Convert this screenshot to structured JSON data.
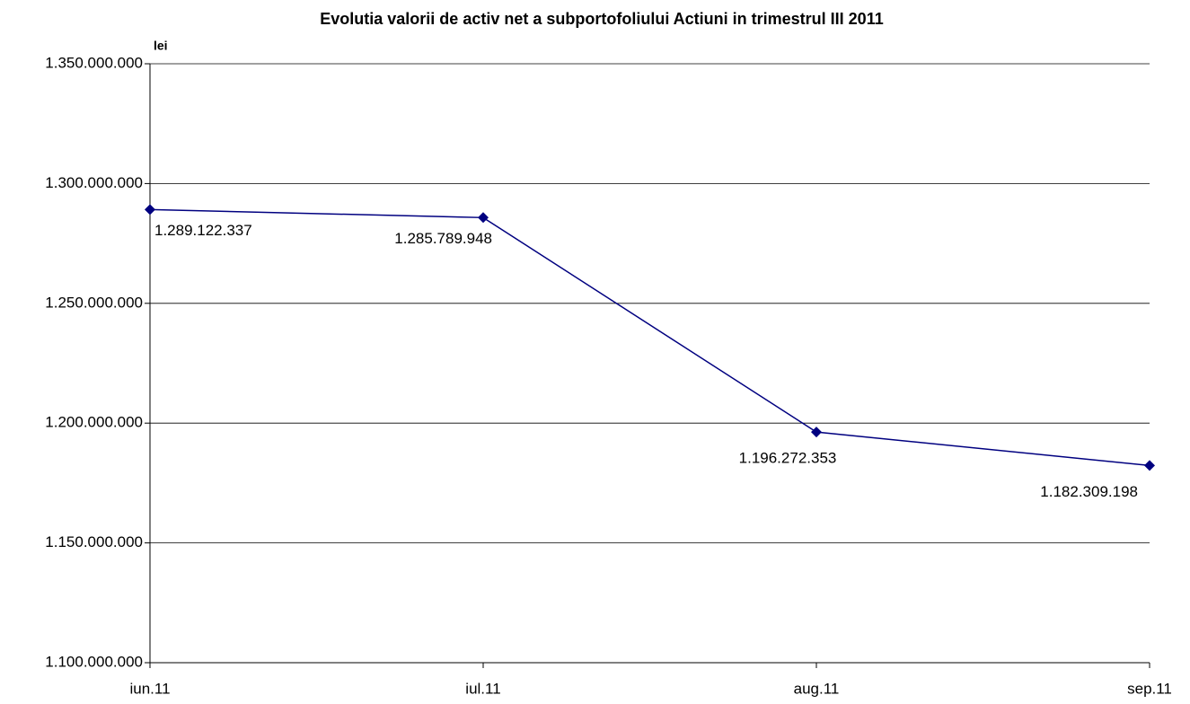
{
  "chart_data": {
    "type": "line",
    "title": "Evolutia valorii de activ net a subportofoliului Actiuni in trimestrul III 2011",
    "y_label": "lei",
    "categories": [
      "iun.11",
      "iul.11",
      "aug.11",
      "sep.11"
    ],
    "series": [
      {
        "name": null,
        "color": "#000080",
        "values": [
          1289122337,
          1285789948,
          1196272353,
          1182309198
        ],
        "value_labels": [
          "1.289.122.337",
          "1.285.789.948",
          "1.196.272.353",
          "1.182.309.198"
        ]
      }
    ],
    "ylim": [
      1100000000,
      1350000000
    ],
    "yticks": [
      {
        "value": 1100000000,
        "label": "1.100.000.000"
      },
      {
        "value": 1150000000,
        "label": "1.150.000.000"
      },
      {
        "value": 1200000000,
        "label": "1.200.000.000"
      },
      {
        "value": 1250000000,
        "label": "1.250.000.000"
      },
      {
        "value": 1300000000,
        "label": "1.300.000.000"
      },
      {
        "value": 1350000000,
        "label": "1.350.000.000"
      }
    ],
    "grid": true
  }
}
